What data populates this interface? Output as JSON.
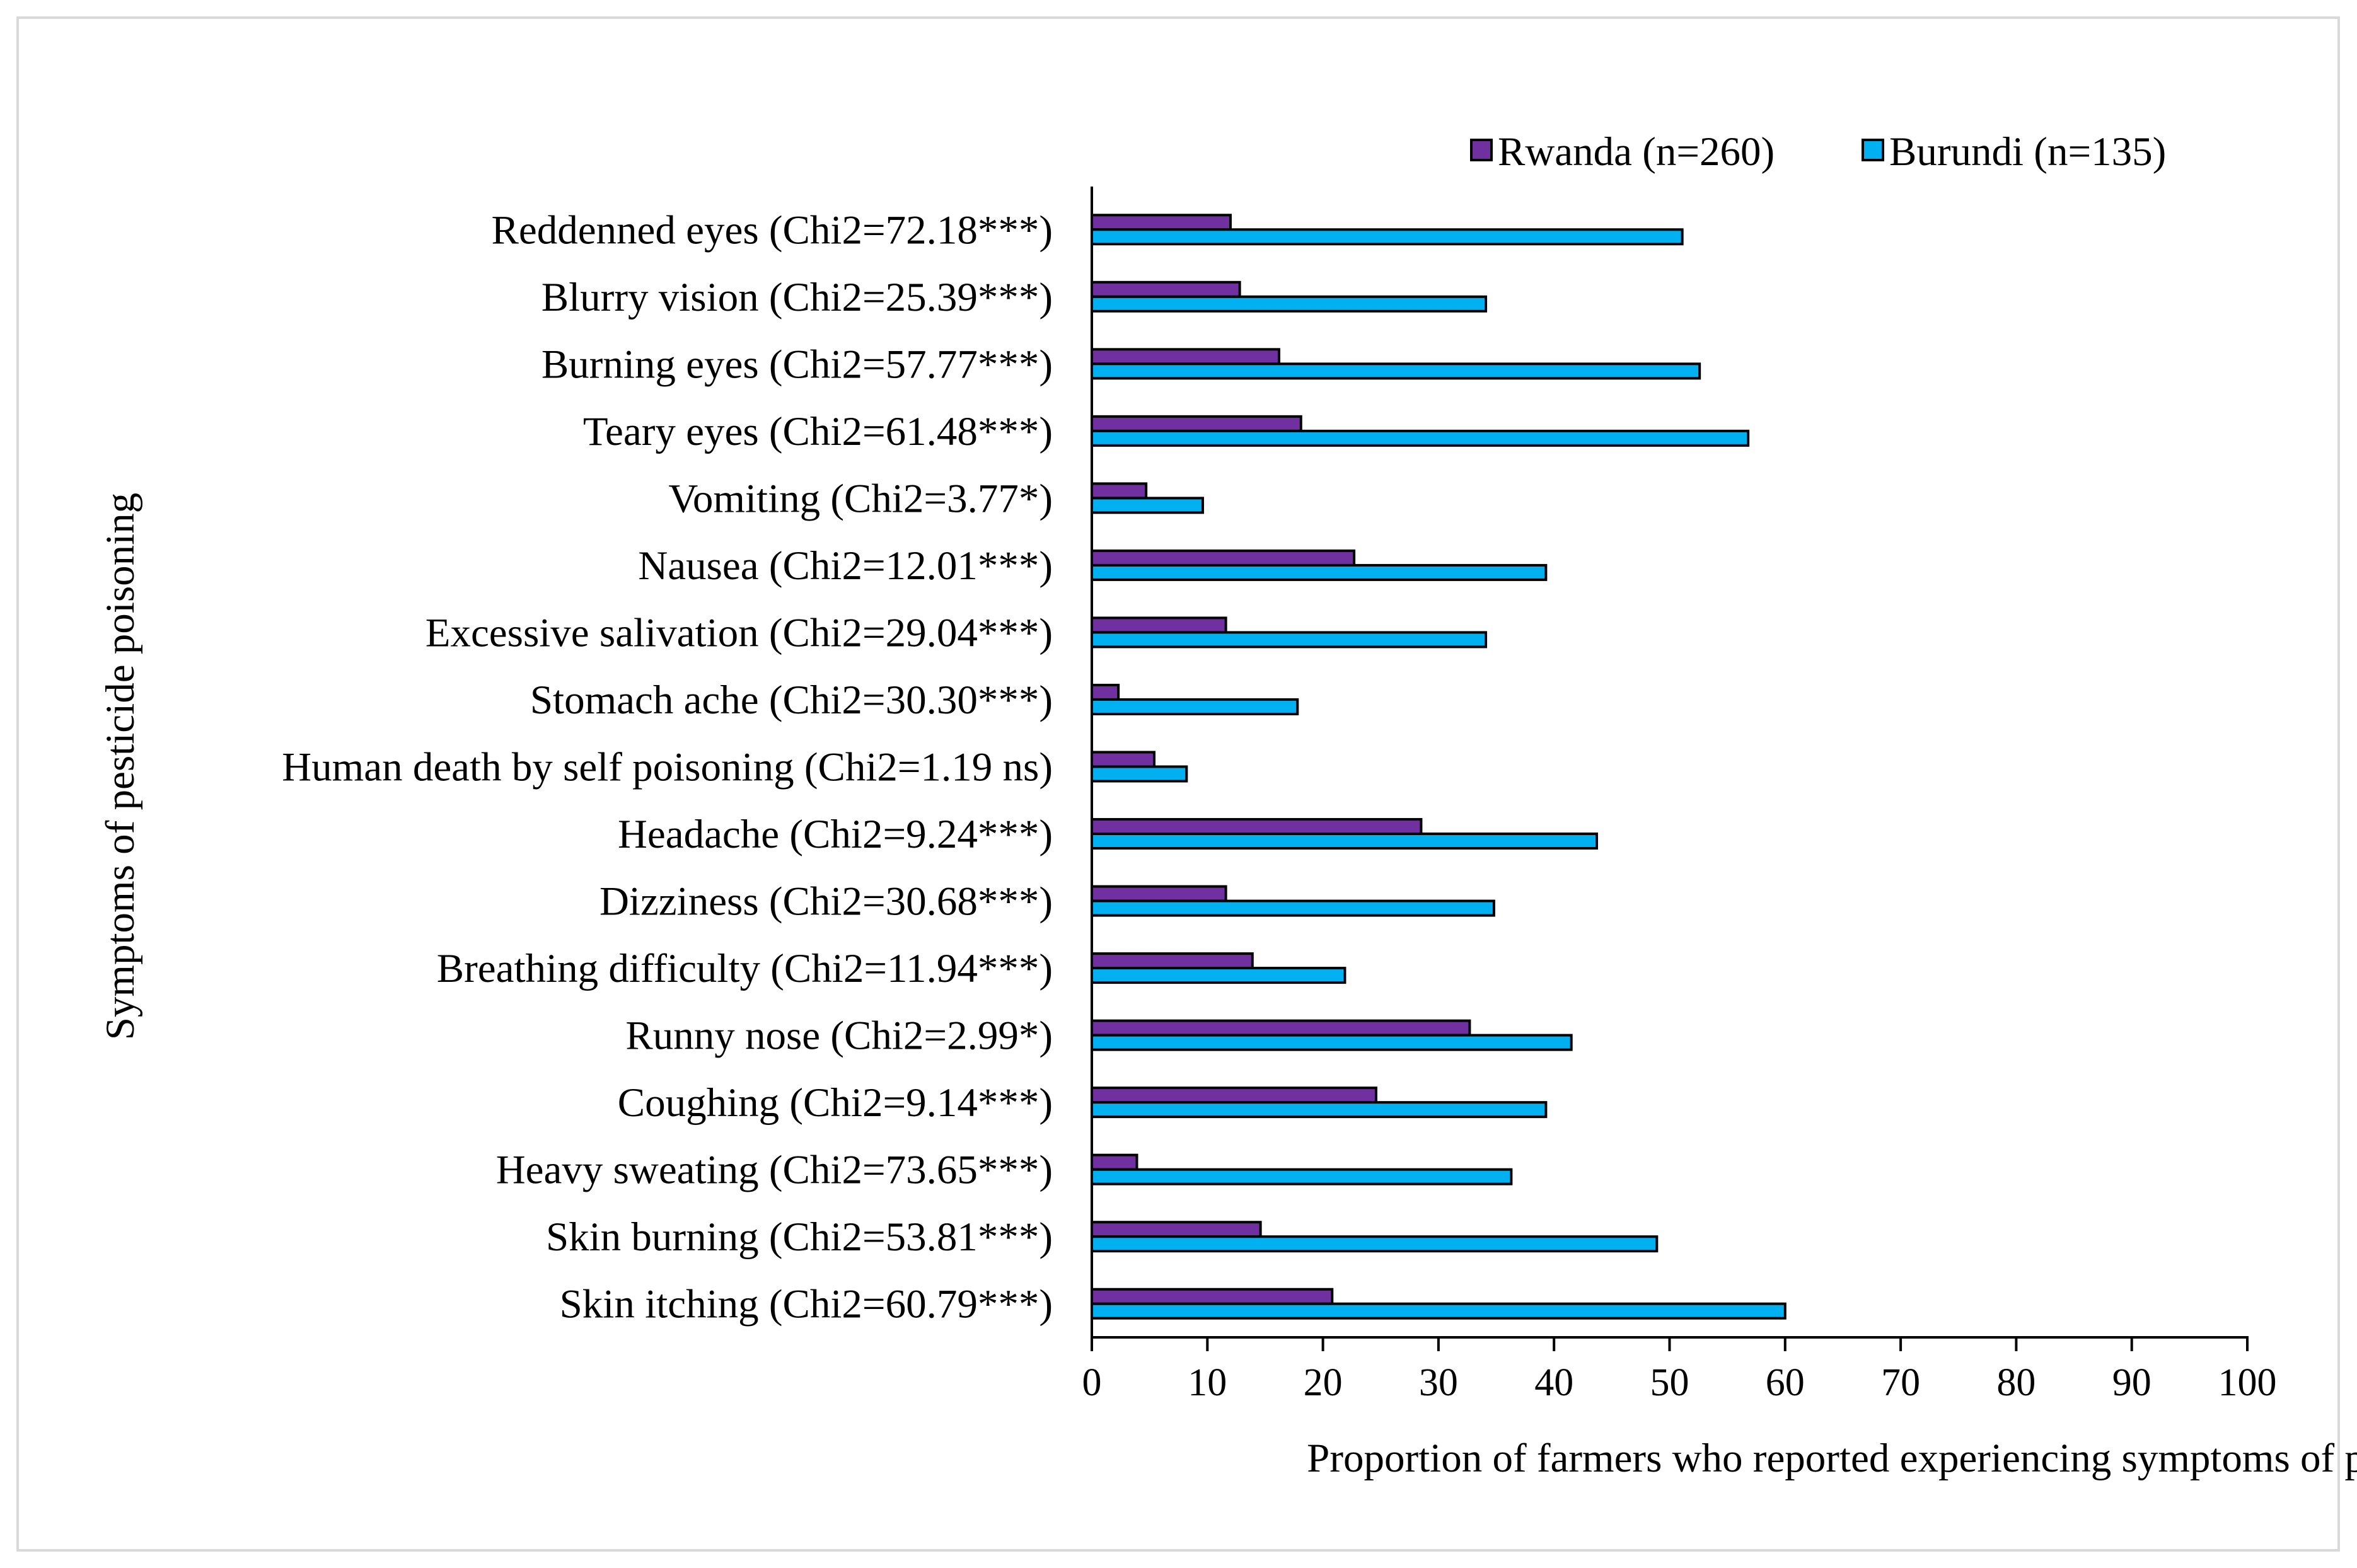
{
  "chart_data": {
    "type": "bar",
    "orientation": "horizontal",
    "title": "",
    "xlabel": "Proportion of farmers who reported experiencing symptoms of pesticide poisoning (%)",
    "ylabel": "Symptoms of pesticide poisoning",
    "xlim": [
      0,
      100
    ],
    "x_ticks": [
      0,
      10,
      20,
      30,
      40,
      50,
      60,
      70,
      80,
      90,
      100
    ],
    "grid": false,
    "legend_position": "top-right",
    "categories": [
      "Reddenned eyes (Chi2=72.18***)",
      "Blurry vision (Chi2=25.39***)",
      "Burning eyes (Chi2=57.77***)",
      "Teary eyes (Chi2=61.48***)",
      "Vomiting (Chi2=3.77*)",
      "Nausea (Chi2=12.01***)",
      "Excessive salivation (Chi2=29.04***)",
      "Stomach ache (Chi2=30.30***)",
      "Human death by self poisoning (Chi2=1.19 ns)",
      "Headache (Chi2=9.24***)",
      "Dizziness (Chi2=30.68***)",
      "Breathing difficulty (Chi2=11.94***)",
      "Runny nose (Chi2=2.99*)",
      "Coughing (Chi2=9.14***)",
      "Heavy sweating (Chi2=73.65***)",
      "Skin burning (Chi2=53.81***)",
      "Skin itching (Chi2=60.79***)"
    ],
    "series": [
      {
        "name": "Rwanda (n=260)",
        "color": "#7030a0",
        "values": [
          12.0,
          12.8,
          16.2,
          18.1,
          4.7,
          22.7,
          11.6,
          2.3,
          5.4,
          28.5,
          11.6,
          13.9,
          32.7,
          24.6,
          3.9,
          14.6,
          20.8
        ]
      },
      {
        "name": "Burundi (n=135)",
        "color": "#00b0f0",
        "values": [
          51.1,
          34.1,
          52.6,
          56.8,
          9.6,
          39.3,
          34.1,
          17.8,
          8.2,
          43.7,
          34.8,
          21.9,
          41.5,
          39.3,
          36.3,
          48.9,
          60.0
        ]
      }
    ]
  }
}
